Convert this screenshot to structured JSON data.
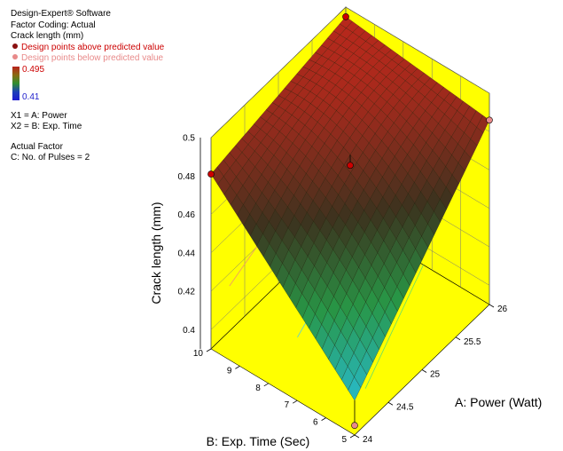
{
  "legend": {
    "software": "Design-Expert® Software",
    "coding": "Factor Coding: Actual",
    "response": "Crack length (mm)",
    "above_label": "Design points above predicted value",
    "below_label": "Design points below predicted value",
    "scale_high": "0.495",
    "scale_low": "0.41",
    "x1": "X1 = A: Power",
    "x2": "X2 = B: Exp. Time",
    "actual_factor_title": "Actual Factor",
    "actual_factor_value": "C: No. of Pulses = 2"
  },
  "colors": {
    "floor": "#ffff00",
    "above_point": "#cc0000",
    "below_point": "#e88a8a",
    "surface_high": "#b9211c",
    "surface_low": "#1fb3d6"
  },
  "chart_data": {
    "type": "surface3d",
    "zlabel": "Crack length (mm)",
    "xlabel": "A: Power (Watt)",
    "ylabel": "B: Exp. Time (Sec)",
    "x_ticks": [
      "24",
      "24.5",
      "25",
      "25.5",
      "26"
    ],
    "y_ticks": [
      "5",
      "6",
      "7",
      "8",
      "9",
      "10"
    ],
    "z_ticks": [
      "0.4",
      "0.42",
      "0.44",
      "0.46",
      "0.48",
      "0.5"
    ],
    "xlim": [
      24,
      26
    ],
    "ylim": [
      5,
      10
    ],
    "zlim": [
      0.39,
      0.5
    ],
    "surface": {
      "x": [
        24,
        26,
        26,
        24
      ],
      "y": [
        5,
        5,
        10,
        10
      ],
      "z": [
        0.408,
        0.486,
        0.495,
        0.481
      ]
    },
    "design_points": [
      {
        "x": 24,
        "y": 10,
        "z": 0.481,
        "position": "above"
      },
      {
        "x": 26,
        "y": 10,
        "z": 0.495,
        "position": "above"
      },
      {
        "x": 25,
        "y": 7.5,
        "z": 0.474,
        "position": "above"
      },
      {
        "x": 26,
        "y": 5,
        "z": 0.486,
        "position": "below"
      },
      {
        "x": 24,
        "y": 5,
        "z": 0.395,
        "position": "below"
      }
    ]
  }
}
